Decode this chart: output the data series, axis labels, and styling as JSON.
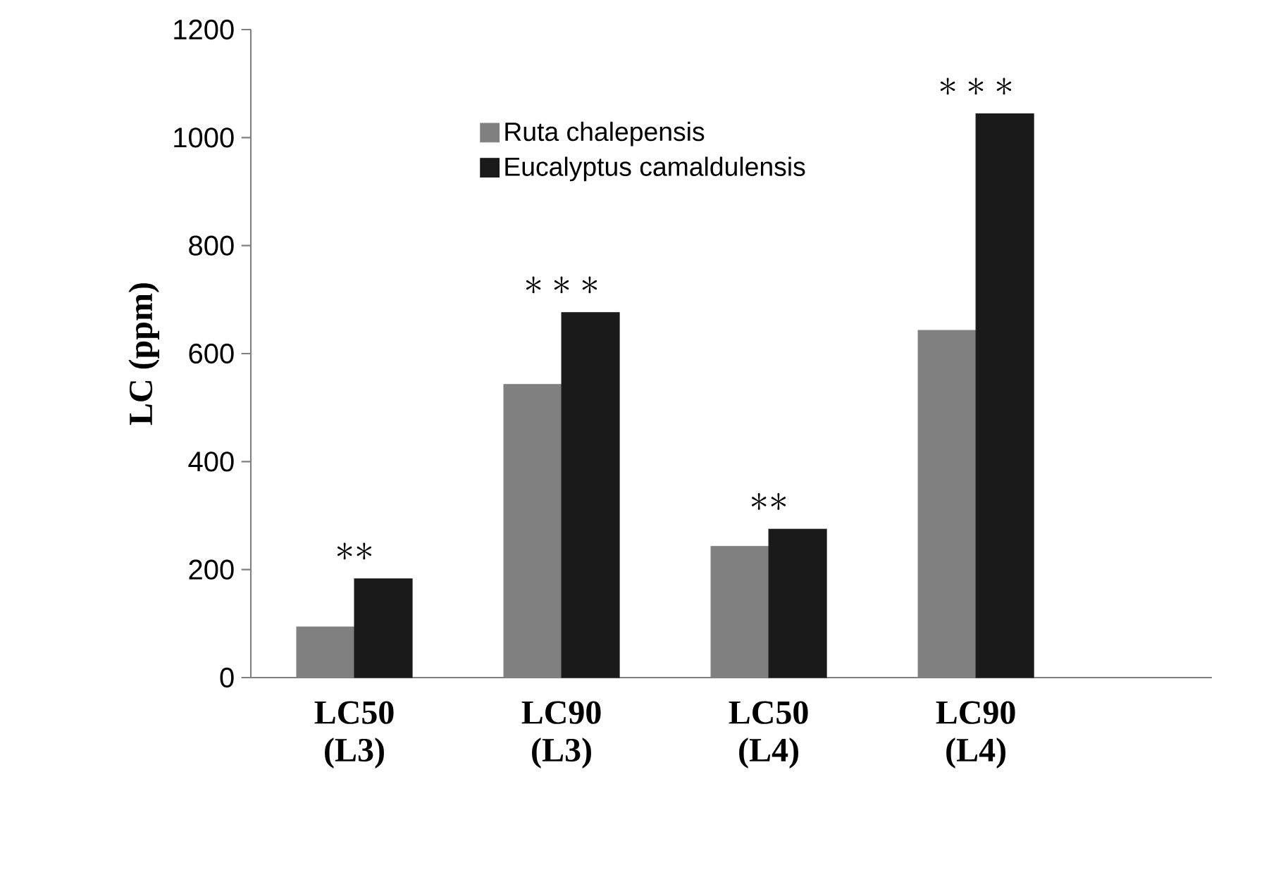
{
  "chart_data": {
    "type": "bar",
    "ylabel": "LC (ppm)",
    "categories": [
      "LC50 (L3)",
      "LC90 (L3)",
      "LC50 (L4)",
      "LC90 (L4)"
    ],
    "series": [
      {
        "name": "Ruta chalepensis",
        "color": "#808080",
        "values": [
          94,
          543,
          243,
          643
        ]
      },
      {
        "name": "Eucalyptus camaldulensis",
        "color": "#1a1a1a",
        "values": [
          183,
          676,
          275,
          1044
        ]
      }
    ],
    "ylim": [
      0,
      1200
    ],
    "yticks": [
      0,
      200,
      400,
      600,
      800,
      1000,
      1200
    ],
    "legend": "top",
    "grid": false,
    "annotations": [
      "**",
      "***",
      "**",
      "***"
    ]
  }
}
